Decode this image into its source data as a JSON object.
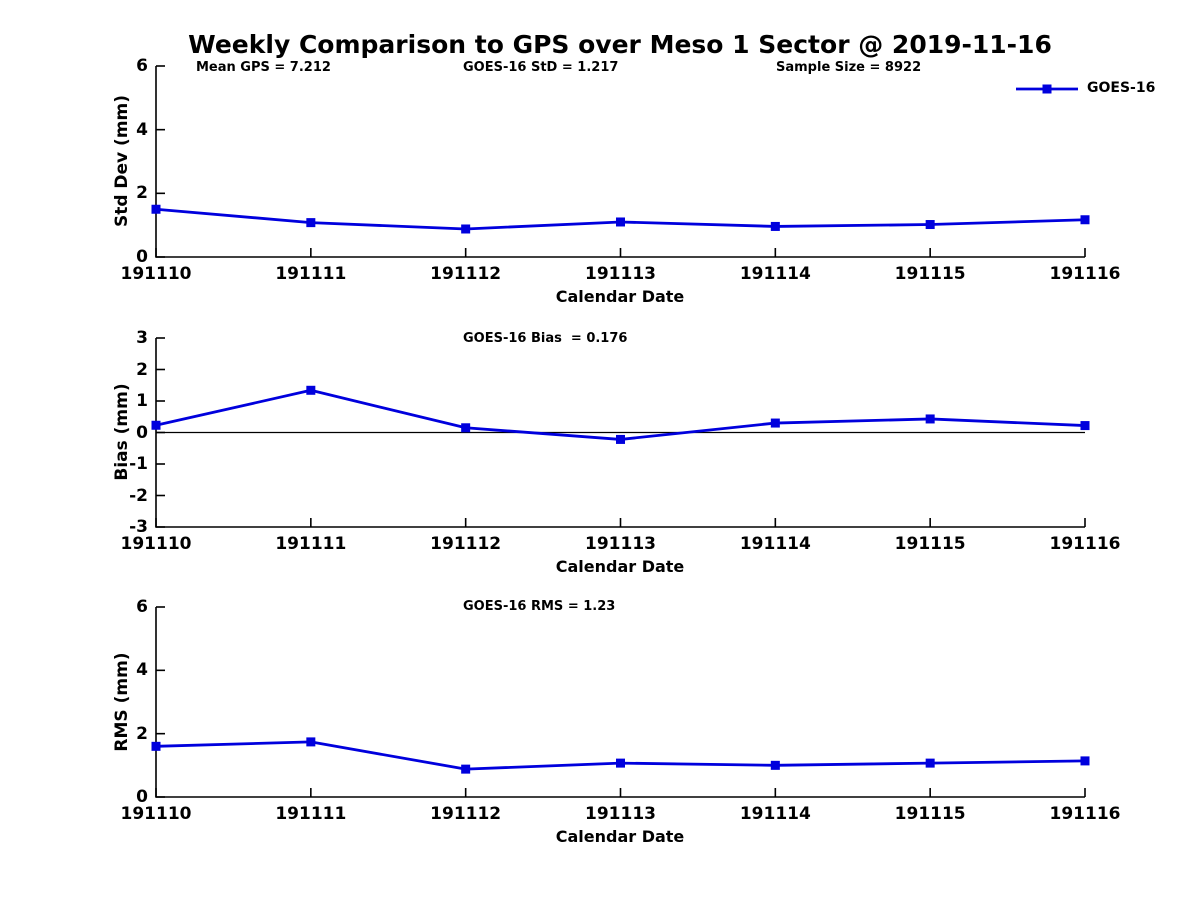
{
  "title": "Weekly Comparison to GPS over Meso 1 Sector @ 2019-11-16",
  "legend": {
    "label": "GOES-16",
    "position": "top-right"
  },
  "colors": {
    "series": "#0000dd",
    "axis": "#000000",
    "background": "#ffffff"
  },
  "chart_data": [
    {
      "type": "line",
      "name": "std-dev-subplot",
      "ylabel": "Std Dev (mm)",
      "xlabel": "Calendar Date",
      "x": [
        "191110",
        "191111",
        "191112",
        "191113",
        "191114",
        "191115",
        "191116"
      ],
      "series": [
        {
          "name": "GOES-16",
          "values": [
            1.5,
            1.08,
            0.88,
            1.1,
            0.96,
            1.02,
            1.17
          ]
        }
      ],
      "ylim": [
        0,
        6
      ],
      "yticks": [
        0,
        2,
        4,
        6
      ],
      "grid": false,
      "annotations": [
        {
          "text": "Mean GPS = 7.212"
        },
        {
          "text": "GOES-16 StD = 1.217"
        },
        {
          "text": "Sample Size = 8922"
        }
      ]
    },
    {
      "type": "line",
      "name": "bias-subplot",
      "ylabel": "Bias (mm)",
      "xlabel": "Calendar Date",
      "x": [
        "191110",
        "191111",
        "191112",
        "191113",
        "191114",
        "191115",
        "191116"
      ],
      "series": [
        {
          "name": "GOES-16",
          "values": [
            0.23,
            1.34,
            0.15,
            -0.22,
            0.3,
            0.43,
            0.22
          ]
        }
      ],
      "ylim": [
        -3,
        3
      ],
      "yticks": [
        -3,
        -2,
        -1,
        0,
        1,
        2,
        3
      ],
      "zero_line": true,
      "grid": false,
      "annotations": [
        {
          "text": "GOES-16 Bias  = 0.176"
        }
      ]
    },
    {
      "type": "line",
      "name": "rms-subplot",
      "ylabel": "RMS (mm)",
      "xlabel": "Calendar Date",
      "x": [
        "191110",
        "191111",
        "191112",
        "191113",
        "191114",
        "191115",
        "191116"
      ],
      "series": [
        {
          "name": "GOES-16",
          "values": [
            1.6,
            1.74,
            0.88,
            1.07,
            1.0,
            1.07,
            1.14
          ]
        }
      ],
      "ylim": [
        0,
        6
      ],
      "yticks": [
        0,
        2,
        4,
        6
      ],
      "grid": false,
      "annotations": [
        {
          "text": "GOES-16 RMS = 1.23"
        }
      ]
    }
  ]
}
